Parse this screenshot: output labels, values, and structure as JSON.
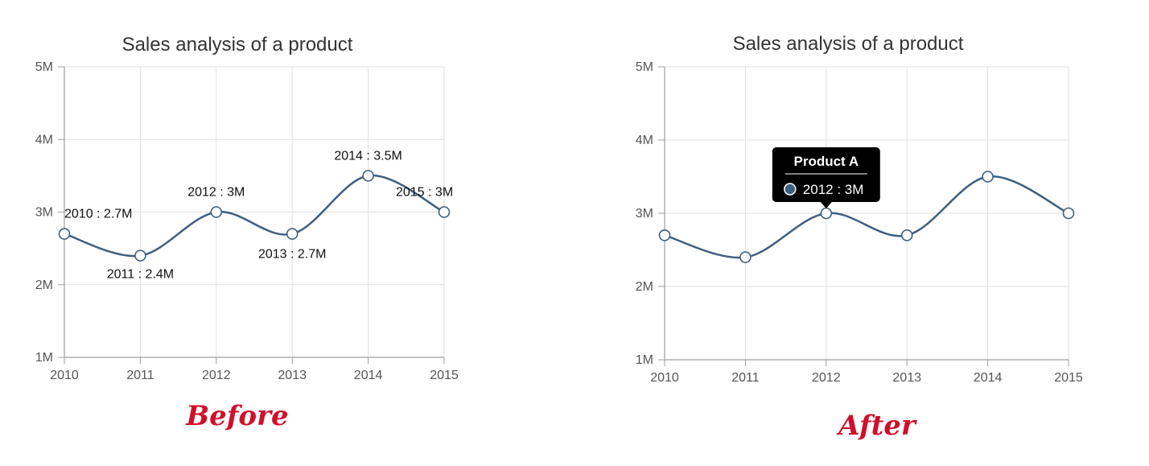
{
  "colors": {
    "series": "#3d5f80",
    "grid": "#e0e0e0",
    "axis": "#9e9e9e",
    "caption": "#d0102a",
    "tooltip_bg": "#000000"
  },
  "chart_data": [
    {
      "type": "line",
      "variant": "spline",
      "panel": "before",
      "title": "Sales analysis of a product",
      "x": [
        "2010",
        "2011",
        "2012",
        "2013",
        "2014",
        "2015"
      ],
      "series": [
        {
          "values": [
            2.7,
            2.4,
            3.0,
            2.7,
            3.5,
            3.0
          ]
        }
      ],
      "y_ticks": [
        "1M",
        "2M",
        "3M",
        "4M",
        "5M"
      ],
      "ylim": [
        1,
        5
      ],
      "grid": true,
      "data_labels": [
        "2010 : 2.7M",
        "2011 : 2.4M",
        "2012 : 3M",
        "2013 : 2.7M",
        "2014 : 3.5M",
        "2015 : 3M"
      ],
      "caption": "Before"
    },
    {
      "type": "line",
      "variant": "spline",
      "panel": "after",
      "title": "Sales analysis of a product",
      "x": [
        "2010",
        "2011",
        "2012",
        "2013",
        "2014",
        "2015"
      ],
      "series": [
        {
          "name": "Product A",
          "values": [
            2.7,
            2.4,
            3.0,
            2.7,
            3.5,
            3.0
          ]
        }
      ],
      "y_ticks": [
        "1M",
        "2M",
        "3M",
        "4M",
        "5M"
      ],
      "ylim": [
        1,
        5
      ],
      "grid": true,
      "tooltip": {
        "point_index": 2,
        "header": "Product A",
        "text": "2012 : 3M"
      },
      "caption": "After"
    }
  ]
}
